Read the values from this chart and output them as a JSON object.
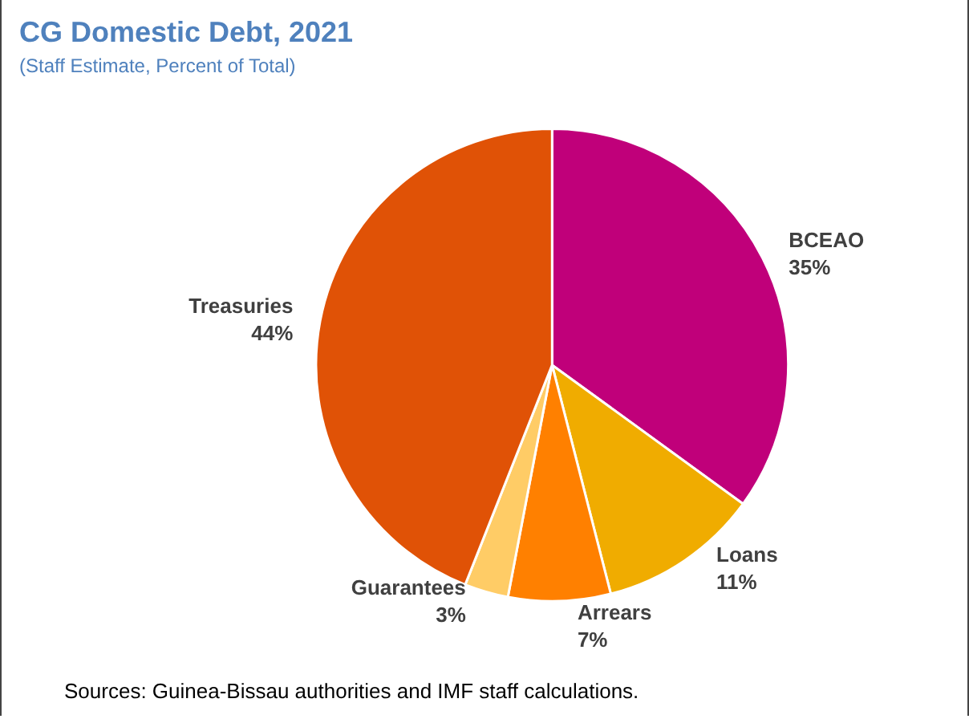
{
  "chart_data": {
    "type": "pie",
    "title": "CG Domestic Debt, 2021",
    "subtitle": "(Staff Estimate, Percent of Total)",
    "categories": [
      "BCEAO",
      "Loans",
      "Arrears",
      "Guarantees",
      "Treasuries"
    ],
    "values": [
      35,
      11,
      7,
      3,
      44
    ],
    "value_labels": [
      "35%",
      "11%",
      "7%",
      "3%",
      "44%"
    ],
    "colors": [
      "#c0007a",
      "#f0ac00",
      "#ff8000",
      "#ffcc66",
      "#e05206"
    ],
    "annotations": [
      "Sources: Guinea-Bissau authorities and IMF staff calculations."
    ],
    "legend": false
  }
}
